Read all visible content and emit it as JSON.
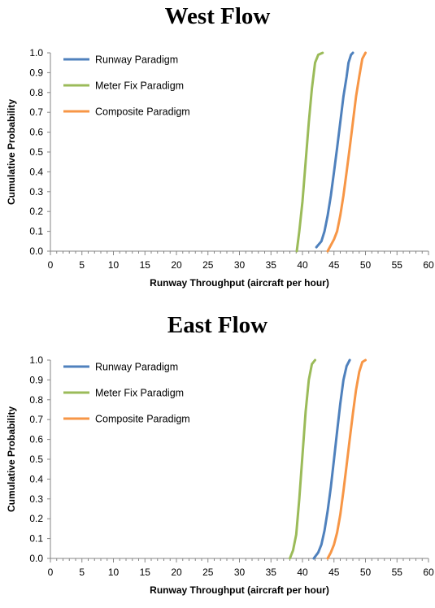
{
  "chart_data": [
    {
      "type": "line",
      "title": "West Flow",
      "xlabel": "Runway Throughput (aircraft per hour)",
      "ylabel": "Cumulative Probability",
      "xlim": [
        0,
        60
      ],
      "ylim": [
        0,
        1.0
      ],
      "xticks": [
        "0",
        "5",
        "10",
        "15",
        "20",
        "25",
        "30",
        "35",
        "40",
        "45",
        "50",
        "55",
        "60"
      ],
      "yticks": [
        "0.0",
        "0.1",
        "0.2",
        "0.3",
        "0.4",
        "0.5",
        "0.6",
        "0.7",
        "0.8",
        "0.9",
        "1.0"
      ],
      "legend_position": "top-left",
      "grid": false,
      "series": [
        {
          "name": "Runway Paradigm",
          "color": "#4f81bd",
          "x": [
            42.2,
            43.0,
            43.5,
            44.0,
            44.5,
            45.0,
            45.5,
            46.0,
            46.5,
            47.0,
            47.3,
            47.7,
            48.0
          ],
          "y": [
            0.02,
            0.05,
            0.1,
            0.18,
            0.28,
            0.4,
            0.52,
            0.65,
            0.78,
            0.88,
            0.95,
            0.99,
            1.0
          ]
        },
        {
          "name": "Meter Fix Paradigm",
          "color": "#9bbb59",
          "x": [
            39.1,
            39.5,
            40.0,
            40.5,
            41.0,
            41.5,
            42.0,
            42.5,
            43.2
          ],
          "y": [
            0.0,
            0.1,
            0.25,
            0.45,
            0.65,
            0.82,
            0.95,
            0.99,
            1.0
          ]
        },
        {
          "name": "Composite Paradigm",
          "color": "#f79646",
          "x": [
            44.0,
            44.5,
            45.0,
            45.5,
            46.0,
            46.5,
            47.0,
            47.5,
            48.0,
            48.5,
            49.0,
            49.5,
            50.0
          ],
          "y": [
            0.0,
            0.03,
            0.06,
            0.1,
            0.18,
            0.28,
            0.4,
            0.52,
            0.65,
            0.78,
            0.88,
            0.97,
            1.0
          ]
        }
      ]
    },
    {
      "type": "line",
      "title": "East Flow",
      "xlabel": "Runway Throughput (aircraft per hour)",
      "ylabel": "Cumulative Probability",
      "xlim": [
        0,
        60
      ],
      "ylim": [
        0,
        1.0
      ],
      "xticks": [
        "0",
        "5",
        "10",
        "15",
        "20",
        "25",
        "30",
        "35",
        "40",
        "45",
        "50",
        "55",
        "60"
      ],
      "yticks": [
        "0.0",
        "0.1",
        "0.2",
        "0.3",
        "0.4",
        "0.5",
        "0.6",
        "0.7",
        "0.8",
        "0.9",
        "1.0"
      ],
      "legend_position": "top-left",
      "grid": false,
      "series": [
        {
          "name": "Runway Paradigm",
          "color": "#4f81bd",
          "x": [
            41.8,
            42.5,
            43.0,
            43.5,
            44.0,
            44.5,
            45.0,
            45.5,
            46.0,
            46.5,
            47.0,
            47.5
          ],
          "y": [
            0.0,
            0.03,
            0.07,
            0.14,
            0.24,
            0.36,
            0.5,
            0.64,
            0.78,
            0.9,
            0.97,
            1.0
          ]
        },
        {
          "name": "Meter Fix Paradigm",
          "color": "#9bbb59",
          "x": [
            38.0,
            38.5,
            39.0,
            39.5,
            40.0,
            40.5,
            41.0,
            41.5,
            42.0
          ],
          "y": [
            0.0,
            0.04,
            0.12,
            0.3,
            0.52,
            0.74,
            0.9,
            0.98,
            1.0
          ]
        },
        {
          "name": "Composite Paradigm",
          "color": "#f79646",
          "x": [
            44.0,
            44.5,
            45.0,
            45.5,
            46.0,
            46.5,
            47.0,
            47.5,
            48.0,
            48.5,
            49.0,
            49.5,
            50.0
          ],
          "y": [
            0.0,
            0.03,
            0.07,
            0.13,
            0.22,
            0.34,
            0.47,
            0.6,
            0.73,
            0.85,
            0.94,
            0.99,
            1.0
          ]
        }
      ]
    }
  ]
}
